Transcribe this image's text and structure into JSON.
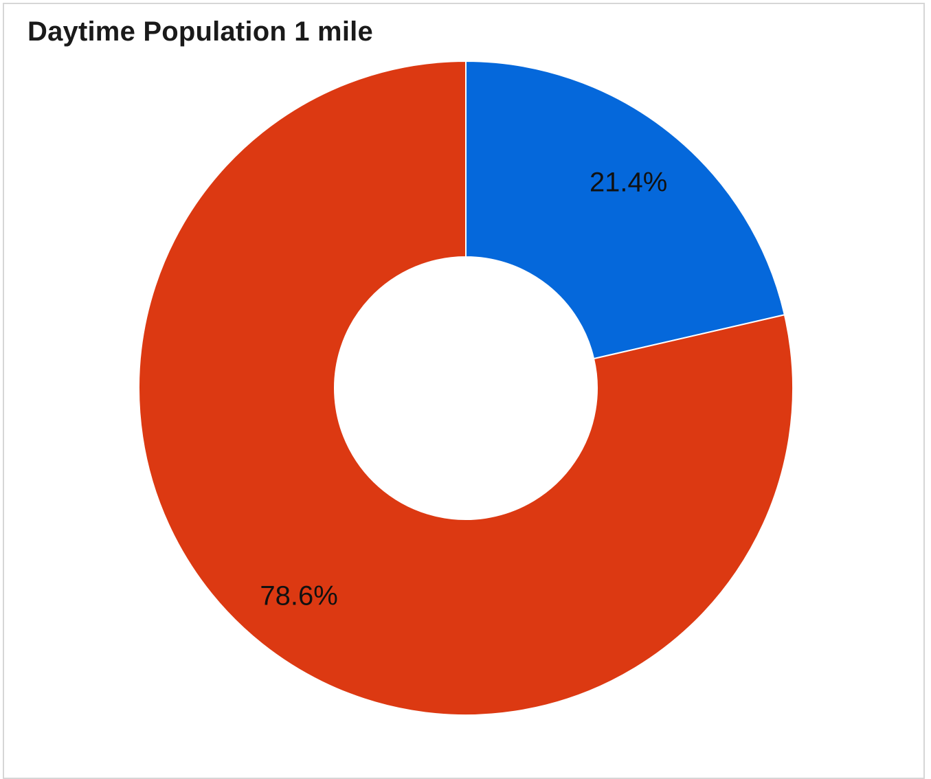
{
  "chart_data": {
    "type": "pie",
    "title": "Daytime Population 1 mile",
    "donut": true,
    "categories": [
      "",
      ""
    ],
    "values": [
      21.4,
      78.6
    ],
    "labels": [
      "21.4%",
      "78.6%"
    ],
    "colors": [
      "#0568DB",
      "#DC3912"
    ],
    "legend": "none"
  }
}
